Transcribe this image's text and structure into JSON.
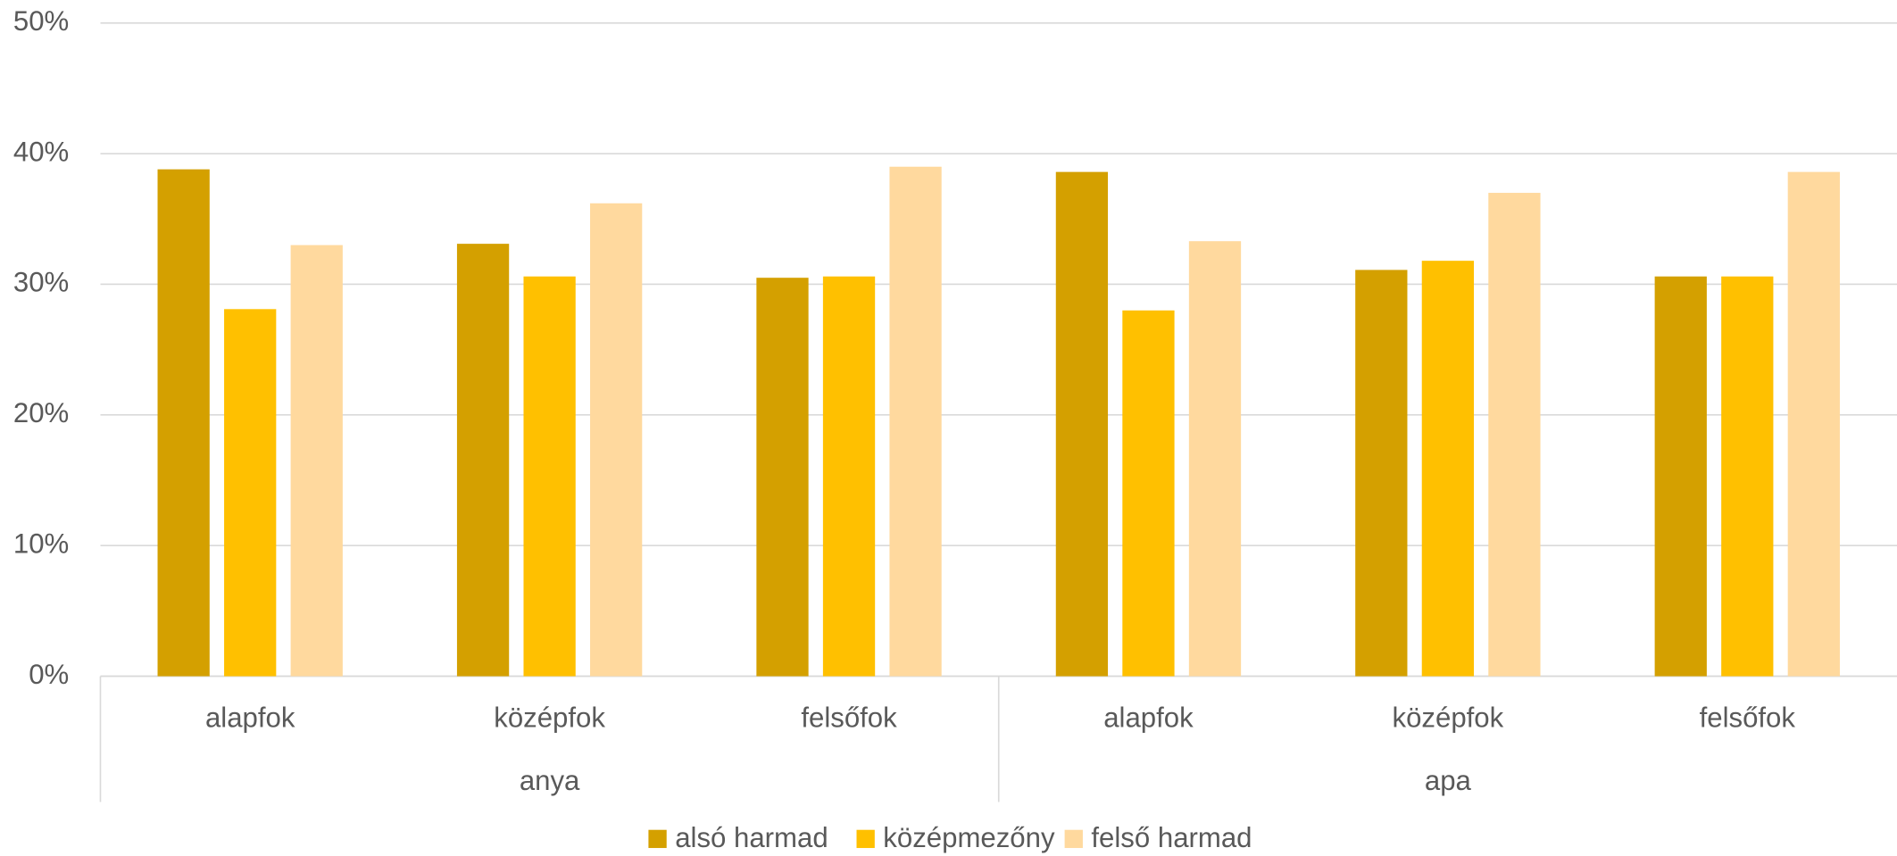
{
  "chart_data": {
    "type": "bar",
    "categories": [
      "alapfok",
      "középfok",
      "felsőfok",
      "alapfok",
      "középfok",
      "felsőfok"
    ],
    "category_groups": [
      "anya",
      "apa"
    ],
    "series": [
      {
        "name": "alsó harmad",
        "color": "#d4a000",
        "values": [
          38.8,
          33.1,
          30.5,
          38.6,
          31.1,
          30.6
        ]
      },
      {
        "name": "középmezőny",
        "color": "#ffc000",
        "values": [
          28.1,
          30.6,
          30.6,
          28.0,
          31.8,
          30.6
        ]
      },
      {
        "name": "felső harmad",
        "color": "#ffd99e",
        "values": [
          33.0,
          36.2,
          39.0,
          33.3,
          37.0,
          38.6
        ]
      }
    ],
    "ylim": [
      0,
      50
    ],
    "yticks": [
      {
        "value": 0,
        "label": "0%"
      },
      {
        "value": 10,
        "label": "10%"
      },
      {
        "value": 20,
        "label": "20%"
      },
      {
        "value": 30,
        "label": "30%"
      },
      {
        "value": 40,
        "label": "40%"
      },
      {
        "value": 50,
        "label": "50%"
      }
    ],
    "grid": true,
    "legend": "bottom"
  }
}
